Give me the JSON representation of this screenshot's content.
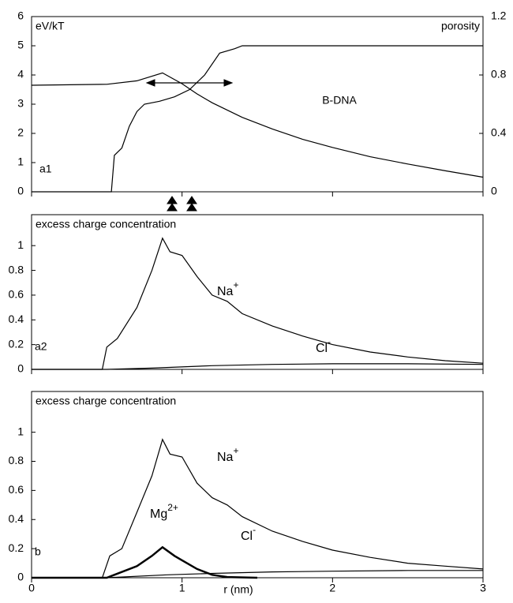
{
  "chart_data": [
    {
      "type": "line",
      "panel_label": "a1",
      "y_label": "eV/kT",
      "y2_label": "porosity",
      "annotation": "B-DNA",
      "xlim": [
        0,
        3
      ],
      "ylim": [
        0,
        6
      ],
      "yticks": [
        0,
        1,
        2,
        3,
        4,
        5,
        6
      ],
      "y2lim": [
        0,
        1.2
      ],
      "y2ticks": [
        0,
        0.4,
        0.8,
        1.2
      ],
      "series": [
        {
          "color": "#000000",
          "x": [
            0,
            0.5,
            0.7,
            0.87,
            1.0,
            1.1,
            1.2,
            1.4,
            1.6,
            1.8,
            2.0,
            2.25,
            2.5,
            2.75,
            3.0
          ],
          "values": [
            3.65,
            3.68,
            3.8,
            4.07,
            3.7,
            3.35,
            3.05,
            2.55,
            2.15,
            1.8,
            1.52,
            1.2,
            0.95,
            0.72,
            0.5
          ]
        },
        {
          "color": "#000000",
          "axis": "y2",
          "x": [
            0,
            0.53,
            0.55,
            0.6,
            0.65,
            0.7,
            0.75,
            0.85,
            0.95,
            1.05,
            1.15,
            1.25,
            1.35,
            1.4,
            3.0
          ],
          "values": [
            0,
            0,
            0.25,
            0.3,
            0.45,
            0.55,
            0.6,
            0.62,
            0.65,
            0.7,
            0.8,
            0.95,
            0.98,
            1.0,
            1.0
          ]
        }
      ]
    },
    {
      "type": "line",
      "panel_label": "a2",
      "y_label": "excess charge concentration",
      "xlim": [
        0,
        3
      ],
      "ylim": [
        0,
        1.25
      ],
      "yticks": [
        0,
        0.2,
        0.4,
        0.6,
        0.8,
        1
      ],
      "series": [
        {
          "label": "Na",
          "label_sup": "+",
          "color": "#000000",
          "x": [
            0,
            0.47,
            0.5,
            0.57,
            0.7,
            0.8,
            0.87,
            0.92,
            1.0,
            1.1,
            1.2,
            1.3,
            1.4,
            1.6,
            1.8,
            2.0,
            2.25,
            2.5,
            2.75,
            3.0
          ],
          "values": [
            0,
            0,
            0.18,
            0.25,
            0.5,
            0.8,
            1.06,
            0.95,
            0.92,
            0.75,
            0.6,
            0.55,
            0.45,
            0.35,
            0.27,
            0.2,
            0.14,
            0.1,
            0.07,
            0.05
          ]
        },
        {
          "label": "Cl",
          "label_sup": "-",
          "color": "#000000",
          "x": [
            0,
            0.5,
            0.8,
            1.2,
            1.6,
            2.0,
            2.5,
            3.0
          ],
          "values": [
            0,
            0,
            0.01,
            0.03,
            0.04,
            0.045,
            0.045,
            0.04
          ]
        }
      ]
    },
    {
      "type": "line",
      "panel_label": "b",
      "y_label": "excess charge concentration",
      "x_label": "r (nm)",
      "xlim": [
        0,
        3
      ],
      "xticks": [
        0,
        1,
        2,
        3
      ],
      "ylim": [
        0,
        1.28
      ],
      "yticks": [
        0,
        0.2,
        0.4,
        0.6,
        0.8,
        1
      ],
      "series": [
        {
          "label": "Na",
          "label_sup": "+",
          "color": "#000000",
          "x": [
            0,
            0.47,
            0.52,
            0.6,
            0.7,
            0.8,
            0.87,
            0.92,
            1.0,
            1.1,
            1.2,
            1.3,
            1.4,
            1.6,
            1.8,
            2.0,
            2.25,
            2.5,
            2.75,
            3.0
          ],
          "values": [
            0,
            0,
            0.15,
            0.2,
            0.45,
            0.7,
            0.95,
            0.85,
            0.83,
            0.65,
            0.55,
            0.5,
            0.42,
            0.32,
            0.25,
            0.19,
            0.14,
            0.1,
            0.08,
            0.06
          ]
        },
        {
          "label": "Mg",
          "label_sup": "2+",
          "color": "#000000",
          "line_width": 2.5,
          "x": [
            0,
            0.5,
            0.55,
            0.7,
            0.8,
            0.87,
            0.95,
            1.0,
            1.1,
            1.2,
            1.3,
            1.5
          ],
          "values": [
            0,
            0,
            0.02,
            0.08,
            0.15,
            0.21,
            0.15,
            0.12,
            0.06,
            0.02,
            0.005,
            0
          ]
        },
        {
          "label": "Cl",
          "label_sup": "-",
          "color": "#000000",
          "x": [
            0,
            0.5,
            0.9,
            1.2,
            1.6,
            2.0,
            2.5,
            3.0
          ],
          "values": [
            0,
            0,
            0.02,
            0.03,
            0.04,
            0.045,
            0.05,
            0.05
          ]
        }
      ]
    }
  ]
}
